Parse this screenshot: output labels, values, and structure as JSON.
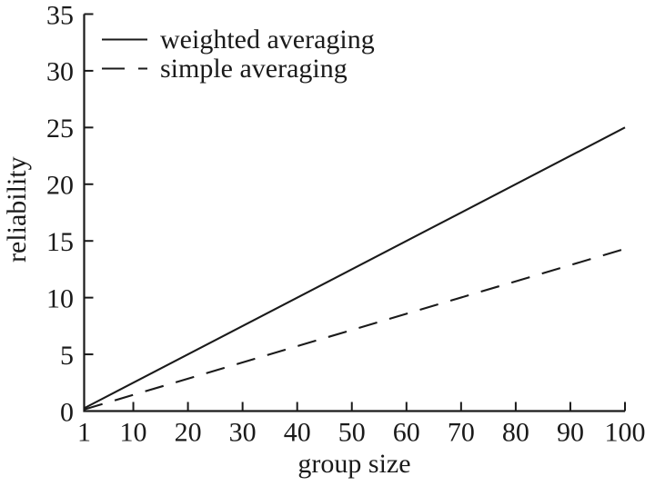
{
  "chart_data": {
    "type": "line",
    "title": "",
    "xlabel": "group size",
    "ylabel": "reliability",
    "xlim": [
      1,
      100
    ],
    "ylim": [
      0,
      35
    ],
    "x_ticks": [
      1,
      10,
      20,
      30,
      40,
      50,
      60,
      70,
      80,
      90,
      100
    ],
    "y_ticks": [
      0,
      5,
      10,
      15,
      20,
      25,
      30,
      35
    ],
    "grid": false,
    "legend_position": "top-left",
    "axis_color": "#1a1a1a",
    "background_color": "#ffffff",
    "series": [
      {
        "name": "weighted averaging",
        "line_style": "solid",
        "color": "#1a1a1a",
        "points": [
          [
            1,
            0.25
          ],
          [
            100,
            25
          ]
        ]
      },
      {
        "name": "simple averaging",
        "line_style": "dashed",
        "color": "#1a1a1a",
        "points": [
          [
            1,
            0.14
          ],
          [
            100,
            14.3
          ]
        ]
      }
    ]
  }
}
